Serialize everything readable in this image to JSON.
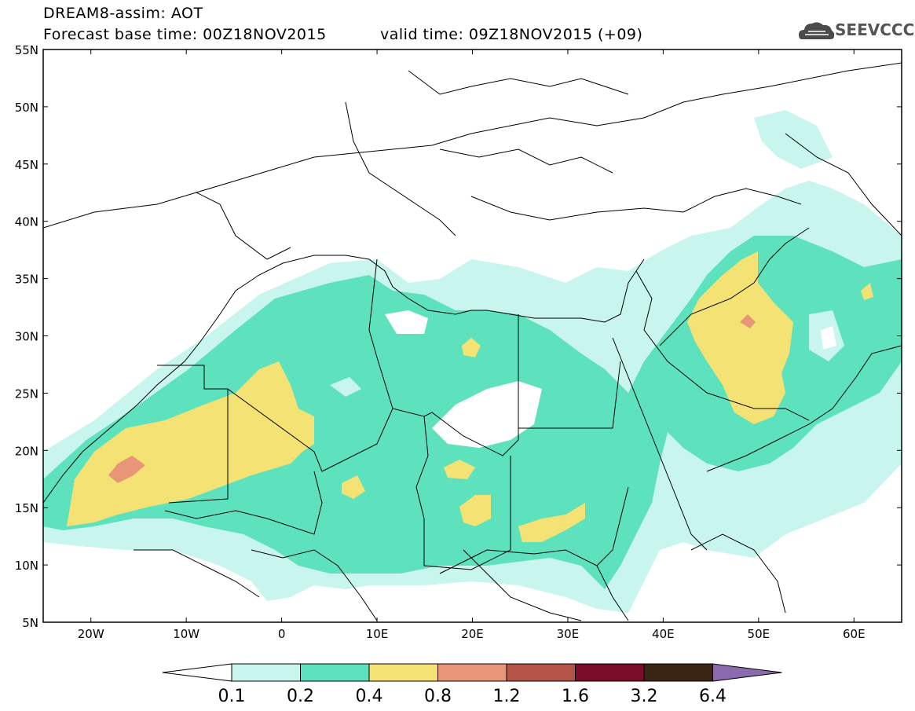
{
  "header": {
    "title": "DREAM8-assim: AOT",
    "base_time": "Forecast base time: 00Z18NOV2015",
    "valid_time": "valid time: 09Z18NOV2015 (+09)"
  },
  "logo": {
    "text": "SEEVCCC",
    "icon": "cloud-logo-icon"
  },
  "map": {
    "lat_labels": [
      "55N",
      "50N",
      "45N",
      "40N",
      "35N",
      "30N",
      "25N",
      "20N",
      "15N",
      "10N",
      "5N"
    ],
    "lon_labels": [
      "20W",
      "10W",
      "0",
      "10E",
      "20E",
      "30E",
      "40E",
      "50E",
      "60E"
    ]
  },
  "colorbar": {
    "levels": [
      "0.1",
      "0.2",
      "0.4",
      "0.8",
      "1.2",
      "1.6",
      "3.2",
      "6.4"
    ],
    "colors": [
      "#c8f5ee",
      "#5ee2bd",
      "#f4e374",
      "#e89678",
      "#b45448",
      "#7a0c2a",
      "#3a2414",
      "#8a6bb0"
    ]
  }
}
